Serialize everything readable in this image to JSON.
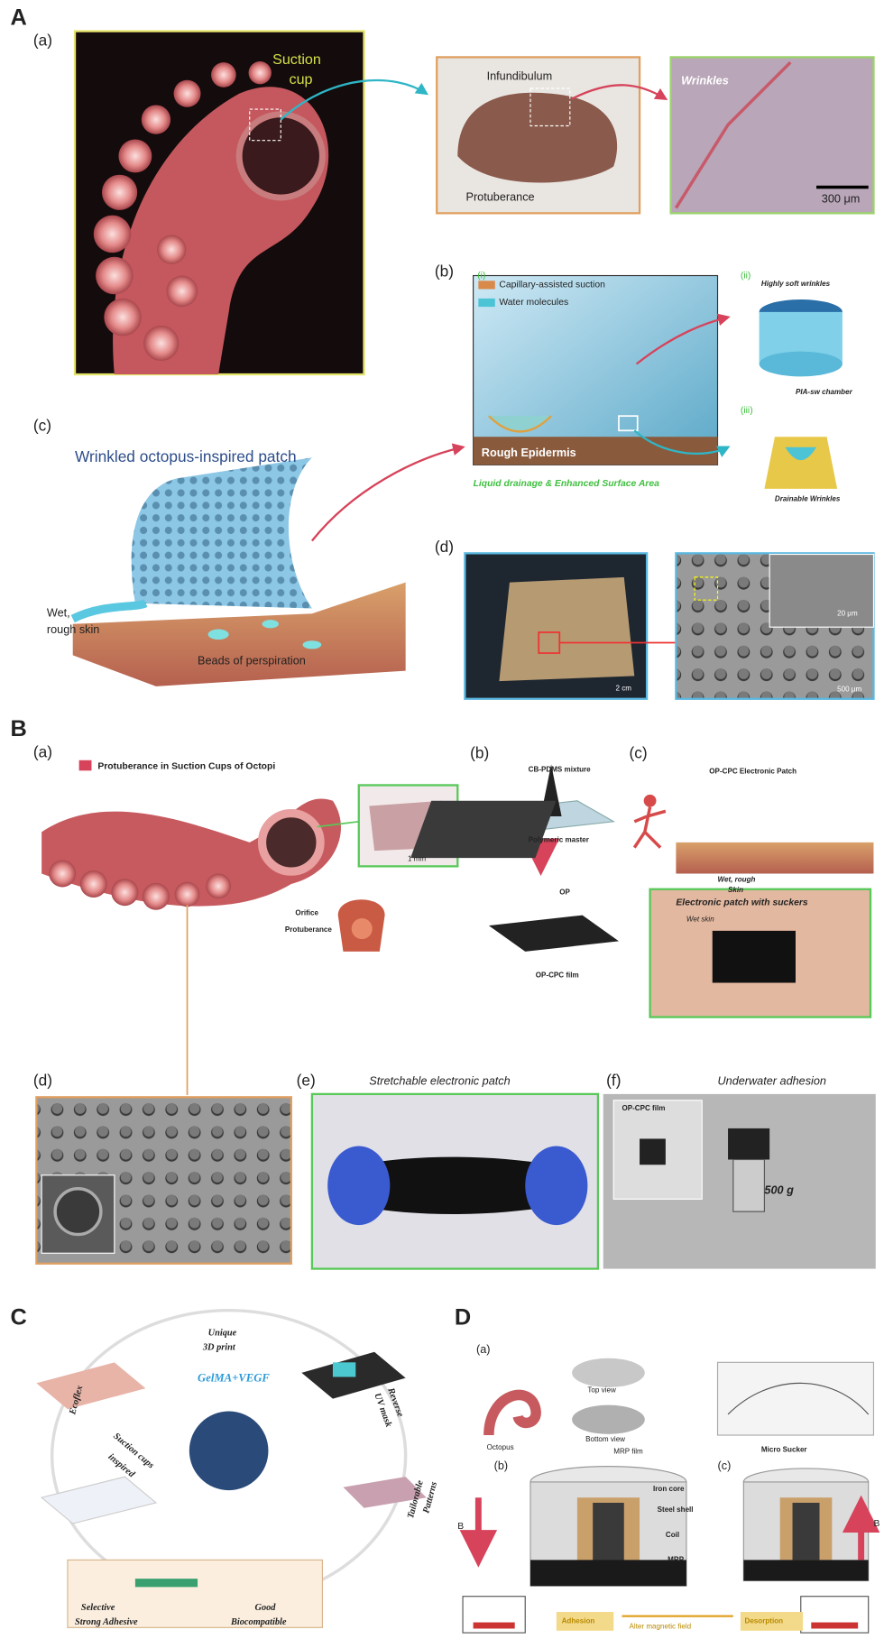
{
  "panel_a": {
    "letter": "A",
    "a": {
      "label": "(a)",
      "suction_cup": [
        "Suction",
        "cup"
      ],
      "infundibulum": "Infundibulum",
      "protuberance": "Protuberance",
      "wrinkles": "Wrinkles",
      "scale": "300 μm"
    },
    "b": {
      "label": "(b)",
      "i": "(i)",
      "legend": [
        "Capillary-assisted suction",
        "Water molecules"
      ],
      "rough_epidermis": "Rough Epidermis",
      "caption": "Liquid drainage & Enhanced Surface Area",
      "ii": "(ii)",
      "highly_soft_wrinkles": "Highly soft wrinkles",
      "chamber": "PIA-sw chamber",
      "iii": "(iii)",
      "drainable": "Drainable Wrinkles"
    },
    "c": {
      "label": "(c)",
      "title": "Wrinkled octopus-inspired patch",
      "skin": [
        "Wet,",
        "rough skin"
      ],
      "beads": "Beads of perspiration"
    },
    "d": {
      "label": "(d)",
      "scale_1": "2 cm",
      "scale_2": "20 μm",
      "scale_3": "500 μm"
    }
  },
  "panel_b": {
    "letter": "B",
    "a": {
      "label": "(a)",
      "title": "Protuberance in Suction Cups of Octopi",
      "scale": "1 mm",
      "orifice": "Orifice",
      "protuberance": "Protuberance"
    },
    "b": {
      "label": "(b)",
      "mixture": "CB-PDMS mixture",
      "master": "Polymeric master",
      "op": "OP",
      "film": "OP-CPC film"
    },
    "c": {
      "label": "(c)",
      "patch": "OP-CPC Electronic Patch",
      "skin": [
        "Wet, rough",
        "Skin"
      ],
      "photo_title": "Electronic patch with suckers",
      "wet_skin": "Wet skin"
    },
    "d": {
      "label": "(d)"
    },
    "e": {
      "label": "(e)",
      "title": "Stretchable electronic patch"
    },
    "f": {
      "label": "(f)",
      "inset": "OP-CPC film",
      "title": "Underwater adhesion",
      "weight": "500 g"
    }
  },
  "panel_c": {
    "letter": "C",
    "print": [
      "Unique",
      "3D print"
    ],
    "gelma": "GelMA+VEGF",
    "mask": [
      "Reverse",
      "UV mask"
    ],
    "patterns": [
      "Tailorable",
      "Patterns"
    ],
    "ecoflex": "Ecoflex",
    "inspired": [
      "Suction cups",
      "inspired"
    ],
    "properties": [
      "Selective",
      "Good",
      "Strong Adhesive",
      "Biocompatible"
    ]
  },
  "panel_d": {
    "letter": "D",
    "a": {
      "label": "(a)",
      "octopus": "Octopus",
      "top": "Top view",
      "bottom": "Bottom view",
      "film": "MRP film",
      "sucker": "Micro Sucker"
    },
    "b": {
      "label": "(b)",
      "parts": [
        "Iron core",
        "Steel shell",
        "Coil",
        "MRP"
      ],
      "field": "B"
    },
    "c": {
      "label": "(c)",
      "field": "B"
    },
    "adhesion": "Adhesion",
    "alter": "Alter magnetic field",
    "desorption": "Desorption"
  }
}
